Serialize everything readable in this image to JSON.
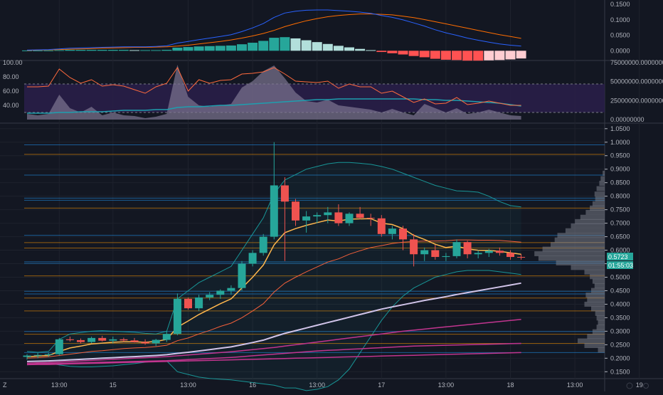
{
  "colors": {
    "bg": "#131722",
    "grid": "#1e222d",
    "separator": "#363a45",
    "up": "#26a69a",
    "down": "#ef5350",
    "text": "#b2b5be",
    "macd_line": "#2962ff",
    "signal_line": "#ff6d00",
    "hist_up_strong": "#26a69a",
    "hist_up_weak": "#b2dfdb",
    "hist_down_strong": "#ff5252",
    "hist_down_weak": "#ffcdd2",
    "rsi_line": "#ff6a3d",
    "rsi_band": "#2a1e4a",
    "rsi_vol_area": "#7e7691",
    "stoch_line": "#1e9faf",
    "ema_fast": "#ffb74d",
    "ema_mid": "#f4603a",
    "sma_long": "#d1c4e9",
    "ma_magenta": "#c2358f",
    "bb": "#1aa3a3",
    "hline_blue": "#2196f3",
    "hline_orange": "#ff9800",
    "vp": "#787b86",
    "price_tag": "#26a69a"
  },
  "x_labels": [
    {
      "label": "13:00",
      "i": 3
    },
    {
      "label": "15",
      "i": 8
    },
    {
      "label": "13:00",
      "i": 15
    },
    {
      "label": "16",
      "i": 21
    },
    {
      "label": "13:00",
      "i": 27
    },
    {
      "label": "17",
      "i": 33
    },
    {
      "label": "13:00",
      "i": 39
    },
    {
      "label": "18",
      "i": 45
    },
    {
      "label": "13:00",
      "i": 51
    },
    {
      "label": "19",
      "i": 57
    }
  ],
  "corner_label": "Z",
  "macd_panel": {
    "ticks": [
      "0.1500",
      "0.1000",
      "0.0500",
      "0.0000"
    ],
    "range": [
      -0.02,
      0.155
    ]
  },
  "rsi_panel": {
    "ticks_left": [
      "100.00",
      "80.00",
      "60.00",
      "40.00"
    ],
    "ticks_right": [
      "75000000.00000000",
      "50000000.00000000",
      "25000000.00000000",
      "0.00000000"
    ],
    "range": [
      20,
      100
    ],
    "band": [
      70,
      30
    ]
  },
  "price_panel": {
    "ticks": [
      "1.0500",
      "1.0000",
      "0.9500",
      "0.9000",
      "0.8500",
      "0.8000",
      "0.7500",
      "0.7000",
      "0.6500",
      "0.6000",
      "0.5500",
      "0.5000",
      "0.4500",
      "0.4000",
      "0.3500",
      "0.3000",
      "0.2500",
      "0.2000",
      "0.1500"
    ],
    "range": [
      0.135,
      1.06
    ],
    "last_price": "0.5723",
    "countdown": "01:55:03"
  },
  "chart_data": {
    "type": "candlestick",
    "candles": [
      [
        0.205,
        0.215,
        0.195,
        0.21
      ],
      [
        0.21,
        0.22,
        0.2,
        0.212
      ],
      [
        0.212,
        0.22,
        0.205,
        0.215
      ],
      [
        0.215,
        0.275,
        0.21,
        0.27
      ],
      [
        0.27,
        0.28,
        0.262,
        0.267
      ],
      [
        0.267,
        0.273,
        0.255,
        0.26
      ],
      [
        0.26,
        0.28,
        0.255,
        0.275
      ],
      [
        0.275,
        0.283,
        0.262,
        0.265
      ],
      [
        0.265,
        0.28,
        0.255,
        0.27
      ],
      [
        0.27,
        0.276,
        0.26,
        0.266
      ],
      [
        0.266,
        0.275,
        0.258,
        0.26
      ],
      [
        0.26,
        0.27,
        0.25,
        0.255
      ],
      [
        0.255,
        0.272,
        0.245,
        0.268
      ],
      [
        0.268,
        0.3,
        0.26,
        0.29
      ],
      [
        0.29,
        0.44,
        0.285,
        0.42
      ],
      [
        0.42,
        0.425,
        0.38,
        0.385
      ],
      [
        0.385,
        0.435,
        0.375,
        0.425
      ],
      [
        0.425,
        0.445,
        0.415,
        0.435
      ],
      [
        0.435,
        0.455,
        0.42,
        0.45
      ],
      [
        0.45,
        0.47,
        0.435,
        0.46
      ],
      [
        0.46,
        0.56,
        0.45,
        0.55
      ],
      [
        0.55,
        0.6,
        0.54,
        0.59
      ],
      [
        0.59,
        0.66,
        0.58,
        0.65
      ],
      [
        0.65,
        1.0,
        0.64,
        0.84
      ],
      [
        0.84,
        0.87,
        0.56,
        0.78
      ],
      [
        0.78,
        0.79,
        0.69,
        0.71
      ],
      [
        0.71,
        0.745,
        0.665,
        0.725
      ],
      [
        0.725,
        0.74,
        0.7,
        0.73
      ],
      [
        0.73,
        0.76,
        0.7,
        0.74
      ],
      [
        0.74,
        0.77,
        0.69,
        0.7
      ],
      [
        0.7,
        0.74,
        0.69,
        0.735
      ],
      [
        0.735,
        0.76,
        0.715,
        0.72
      ],
      [
        0.72,
        0.735,
        0.69,
        0.718
      ],
      [
        0.718,
        0.73,
        0.65,
        0.66
      ],
      [
        0.66,
        0.69,
        0.64,
        0.68
      ],
      [
        0.68,
        0.69,
        0.6,
        0.64
      ],
      [
        0.64,
        0.66,
        0.54,
        0.585
      ],
      [
        0.585,
        0.61,
        0.56,
        0.6
      ],
      [
        0.6,
        0.62,
        0.565,
        0.575
      ],
      [
        0.575,
        0.59,
        0.56,
        0.578
      ],
      [
        0.578,
        0.64,
        0.57,
        0.63
      ],
      [
        0.63,
        0.635,
        0.57,
        0.585
      ],
      [
        0.585,
        0.6,
        0.57,
        0.59
      ],
      [
        0.59,
        0.605,
        0.575,
        0.598
      ],
      [
        0.598,
        0.61,
        0.58,
        0.59
      ],
      [
        0.59,
        0.6,
        0.565,
        0.575
      ],
      [
        0.575,
        0.585,
        0.565,
        0.573
      ]
    ],
    "horizontal_levels": [
      {
        "v": 0.99,
        "c": "hline_blue"
      },
      {
        "v": 0.955,
        "c": "hline_orange"
      },
      {
        "v": 0.878,
        "c": "hline_blue"
      },
      {
        "v": 0.793,
        "c": "hline_blue"
      },
      {
        "v": 0.785,
        "c": "hline_blue"
      },
      {
        "v": 0.756,
        "c": "hline_orange"
      },
      {
        "v": 0.655,
        "c": "hline_blue"
      },
      {
        "v": 0.628,
        "c": "hline_orange"
      },
      {
        "v": 0.608,
        "c": "hline_orange"
      },
      {
        "v": 0.557,
        "c": "hline_blue"
      },
      {
        "v": 0.551,
        "c": "hline_blue"
      },
      {
        "v": 0.505,
        "c": "hline_orange"
      },
      {
        "v": 0.448,
        "c": "hline_blue"
      },
      {
        "v": 0.438,
        "c": "hline_blue"
      },
      {
        "v": 0.423,
        "c": "hline_orange"
      },
      {
        "v": 0.375,
        "c": "hline_orange"
      },
      {
        "v": 0.299,
        "c": "hline_blue"
      },
      {
        "v": 0.289,
        "c": "hline_orange"
      },
      {
        "v": 0.255,
        "c": "hline_orange"
      },
      {
        "v": 0.221,
        "c": "hline_blue"
      }
    ],
    "ema_fast": [
      0.205,
      0.208,
      0.21,
      0.225,
      0.238,
      0.245,
      0.253,
      0.256,
      0.259,
      0.261,
      0.261,
      0.259,
      0.262,
      0.27,
      0.315,
      0.338,
      0.362,
      0.382,
      0.402,
      0.42,
      0.46,
      0.5,
      0.545,
      0.62,
      0.665,
      0.68,
      0.692,
      0.702,
      0.712,
      0.708,
      0.715,
      0.716,
      0.717,
      0.7,
      0.695,
      0.68,
      0.655,
      0.64,
      0.622,
      0.61,
      0.615,
      0.605,
      0.6,
      0.599,
      0.596,
      0.59,
      0.585
    ],
    "ema_mid": [
      0.2,
      0.202,
      0.205,
      0.21,
      0.215,
      0.22,
      0.225,
      0.228,
      0.232,
      0.236,
      0.238,
      0.24,
      0.243,
      0.248,
      0.265,
      0.275,
      0.29,
      0.303,
      0.318,
      0.33,
      0.35,
      0.375,
      0.402,
      0.445,
      0.478,
      0.5,
      0.52,
      0.538,
      0.556,
      0.568,
      0.585,
      0.598,
      0.61,
      0.617,
      0.625,
      0.63,
      0.632,
      0.634,
      0.634,
      0.635,
      0.638,
      0.638,
      0.637,
      0.637,
      0.636,
      0.633,
      0.63
    ],
    "sma_long": [
      0.188,
      0.189,
      0.19,
      0.192,
      0.194,
      0.196,
      0.198,
      0.2,
      0.202,
      0.204,
      0.206,
      0.208,
      0.21,
      0.213,
      0.218,
      0.222,
      0.227,
      0.232,
      0.237,
      0.242,
      0.25,
      0.258,
      0.267,
      0.28,
      0.292,
      0.302,
      0.312,
      0.322,
      0.332,
      0.342,
      0.352,
      0.362,
      0.372,
      0.382,
      0.39,
      0.398,
      0.406,
      0.414,
      0.421,
      0.428,
      0.436,
      0.443,
      0.45,
      0.457,
      0.464,
      0.471,
      0.478
    ],
    "ma_magenta_1": [
      0.182,
      0.183,
      0.184,
      0.186,
      0.188,
      0.19,
      0.192,
      0.194,
      0.196,
      0.198,
      0.2,
      0.202,
      0.204,
      0.206,
      0.209,
      0.212,
      0.215,
      0.218,
      0.221,
      0.224,
      0.228,
      0.232,
      0.236,
      0.24,
      0.245,
      0.25,
      0.255,
      0.26,
      0.265,
      0.27,
      0.275,
      0.28,
      0.285,
      0.29,
      0.295,
      0.3,
      0.304,
      0.308,
      0.312,
      0.316,
      0.32,
      0.324,
      0.328,
      0.332,
      0.336,
      0.34,
      0.344
    ],
    "ma_magenta_2": [
      0.178,
      0.179,
      0.18,
      0.181,
      0.182,
      0.183,
      0.184,
      0.185,
      0.186,
      0.187,
      0.188,
      0.189,
      0.19,
      0.191,
      0.193,
      0.195,
      0.197,
      0.199,
      0.201,
      0.203,
      0.206,
      0.209,
      0.212,
      0.215,
      0.218,
      0.221,
      0.224,
      0.227,
      0.229,
      0.231,
      0.233,
      0.235,
      0.237,
      0.239,
      0.241,
      0.243,
      0.245,
      0.246,
      0.247,
      0.248,
      0.249,
      0.25,
      0.251,
      0.252,
      0.253,
      0.254,
      0.255
    ],
    "ma_magenta_3": [
      0.176,
      0.177,
      0.177,
      0.178,
      0.179,
      0.18,
      0.181,
      0.182,
      0.183,
      0.184,
      0.185,
      0.186,
      0.187,
      0.188,
      0.189,
      0.19,
      0.191,
      0.192,
      0.193,
      0.194,
      0.195,
      0.196,
      0.197,
      0.198,
      0.199,
      0.2,
      0.201,
      0.202,
      0.203,
      0.204,
      0.205,
      0.206,
      0.207,
      0.208,
      0.209,
      0.21,
      0.211,
      0.212,
      0.213,
      0.214,
      0.215,
      0.216,
      0.217,
      0.218,
      0.219,
      0.22,
      0.221
    ],
    "bb_upper": [
      0.225,
      0.222,
      0.225,
      0.27,
      0.29,
      0.295,
      0.3,
      0.302,
      0.3,
      0.298,
      0.296,
      0.292,
      0.29,
      0.3,
      0.42,
      0.45,
      0.48,
      0.5,
      0.52,
      0.54,
      0.6,
      0.66,
      0.72,
      0.81,
      0.86,
      0.88,
      0.9,
      0.91,
      0.92,
      0.925,
      0.925,
      0.922,
      0.918,
      0.91,
      0.9,
      0.885,
      0.87,
      0.855,
      0.84,
      0.83,
      0.82,
      0.818,
      0.815,
      0.8,
      0.78,
      0.765,
      0.76
    ],
    "bb_lower": [
      0.175,
      0.18,
      0.182,
      0.175,
      0.17,
      0.168,
      0.168,
      0.17,
      0.172,
      0.176,
      0.18,
      0.185,
      0.19,
      0.19,
      0.15,
      0.14,
      0.13,
      0.125,
      0.122,
      0.12,
      0.115,
      0.11,
      0.105,
      0.1,
      0.09,
      0.09,
      0.08,
      0.085,
      0.095,
      0.12,
      0.16,
      0.22,
      0.28,
      0.34,
      0.39,
      0.43,
      0.46,
      0.48,
      0.5,
      0.51,
      0.52,
      0.525,
      0.525,
      0.525,
      0.52,
      0.515,
      0.51
    ],
    "macd": [
      0.002,
      0.003,
      0.004,
      0.006,
      0.008,
      0.009,
      0.01,
      0.011,
      0.012,
      0.013,
      0.013,
      0.013,
      0.014,
      0.016,
      0.025,
      0.03,
      0.036,
      0.041,
      0.046,
      0.052,
      0.062,
      0.074,
      0.088,
      0.108,
      0.122,
      0.128,
      0.131,
      0.132,
      0.132,
      0.13,
      0.128,
      0.125,
      0.121,
      0.114,
      0.108,
      0.1,
      0.09,
      0.08,
      0.068,
      0.058,
      0.05,
      0.041,
      0.034,
      0.028,
      0.022,
      0.018,
      0.015
    ],
    "signal": [
      0.001,
      0.002,
      0.003,
      0.004,
      0.005,
      0.006,
      0.007,
      0.008,
      0.009,
      0.01,
      0.011,
      0.011,
      0.012,
      0.013,
      0.015,
      0.018,
      0.022,
      0.026,
      0.03,
      0.035,
      0.041,
      0.048,
      0.056,
      0.066,
      0.078,
      0.088,
      0.097,
      0.104,
      0.11,
      0.114,
      0.117,
      0.119,
      0.119,
      0.118,
      0.116,
      0.112,
      0.107,
      0.101,
      0.094,
      0.087,
      0.08,
      0.073,
      0.066,
      0.059,
      0.052,
      0.046,
      0.04
    ],
    "histogram": [
      0.001,
      0.001,
      0.001,
      0.002,
      0.003,
      0.003,
      0.003,
      0.003,
      0.003,
      0.003,
      0.002,
      0.002,
      0.002,
      0.003,
      0.01,
      0.012,
      0.014,
      0.015,
      0.016,
      0.017,
      0.021,
      0.026,
      0.032,
      0.042,
      0.044,
      0.04,
      0.034,
      0.028,
      0.022,
      0.016,
      0.011,
      0.006,
      0.002,
      -0.004,
      -0.008,
      -0.012,
      -0.017,
      -0.021,
      -0.026,
      -0.029,
      -0.03,
      -0.032,
      -0.032,
      -0.031,
      -0.03,
      -0.028,
      -0.025
    ],
    "rsi": [
      66,
      66,
      67,
      91,
      79,
      71,
      76,
      67,
      69,
      67,
      62,
      57,
      66,
      71,
      93,
      60,
      76,
      71,
      75,
      76,
      84,
      85,
      87,
      93,
      84,
      74,
      73,
      72,
      74,
      64,
      70,
      66,
      66,
      57,
      60,
      52,
      44,
      49,
      42,
      43,
      51,
      41,
      43,
      46,
      43,
      40,
      40
    ],
    "stoch": [
      29,
      29,
      29,
      30,
      30,
      31,
      31,
      31,
      32,
      33,
      33,
      33,
      34,
      34,
      37,
      38,
      38,
      39,
      40,
      40,
      41,
      42,
      43,
      44,
      45,
      46,
      47,
      48,
      48,
      49,
      49,
      49,
      49,
      49,
      49,
      49,
      49,
      48,
      48,
      47,
      47,
      46,
      45,
      44,
      43,
      41,
      39
    ],
    "rsi_volume_area": [
      28,
      26,
      28,
      55,
      36,
      30,
      38,
      26,
      30,
      26,
      25,
      22,
      24,
      28,
      97,
      52,
      40,
      38,
      40,
      42,
      65,
      74,
      88,
      96,
      78,
      58,
      46,
      44,
      48,
      40,
      38,
      36,
      34,
      30,
      35,
      30,
      26,
      42,
      36,
      30,
      36,
      28,
      30,
      34,
      30,
      26,
      25
    ],
    "volume_profile": [
      [
        0.885,
        3
      ],
      [
        0.865,
        6
      ],
      [
        0.848,
        8
      ],
      [
        0.828,
        12
      ],
      [
        0.808,
        15
      ],
      [
        0.79,
        14
      ],
      [
        0.772,
        18
      ],
      [
        0.756,
        22
      ],
      [
        0.74,
        28
      ],
      [
        0.722,
        36
      ],
      [
        0.706,
        44
      ],
      [
        0.69,
        50
      ],
      [
        0.672,
        58
      ],
      [
        0.655,
        70
      ],
      [
        0.638,
        74
      ],
      [
        0.621,
        80
      ],
      [
        0.604,
        92
      ],
      [
        0.587,
        104
      ],
      [
        0.57,
        98
      ],
      [
        0.553,
        72
      ],
      [
        0.536,
        50
      ],
      [
        0.519,
        30
      ],
      [
        0.502,
        22
      ],
      [
        0.485,
        18
      ],
      [
        0.468,
        15
      ],
      [
        0.451,
        20
      ],
      [
        0.434,
        28
      ],
      [
        0.417,
        26
      ],
      [
        0.4,
        30
      ],
      [
        0.383,
        20
      ],
      [
        0.366,
        14
      ],
      [
        0.349,
        12
      ],
      [
        0.332,
        10
      ],
      [
        0.315,
        12
      ],
      [
        0.298,
        18
      ],
      [
        0.281,
        26
      ],
      [
        0.264,
        40
      ],
      [
        0.247,
        30
      ],
      [
        0.23,
        10
      ]
    ]
  }
}
